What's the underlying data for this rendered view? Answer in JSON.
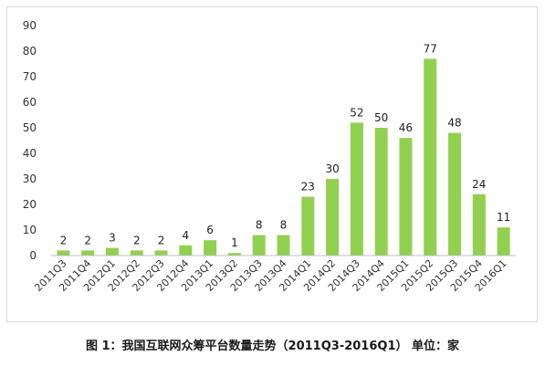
{
  "caption": "图 1：我国互联网众筹平台数量走势（2011Q3-2016Q1） 单位：家",
  "chart_data": {
    "type": "bar",
    "categories": [
      "2011Q3",
      "2011Q4",
      "2012Q1",
      "2012Q2",
      "2012Q3",
      "2012Q4",
      "2013Q1",
      "2013Q2",
      "2013Q3",
      "2013Q4",
      "2014Q1",
      "2014Q2",
      "2014Q3",
      "2014Q4",
      "2015Q1",
      "2015Q2",
      "2015Q3",
      "2015Q4",
      "2016Q1"
    ],
    "values": [
      2,
      2,
      3,
      2,
      2,
      4,
      6,
      1,
      8,
      8,
      23,
      30,
      52,
      50,
      46,
      77,
      48,
      24,
      11
    ],
    "data_labels": [
      "2",
      "2",
      "3",
      "2",
      "2",
      "4",
      "6",
      "1",
      "8",
      "8",
      "23",
      "30",
      "52",
      "50",
      "46",
      "77",
      "48",
      "24",
      "11"
    ],
    "yticks": [
      "0",
      "10",
      "20",
      "30",
      "40",
      "50",
      "60",
      "70",
      "80",
      "90"
    ],
    "ylim": [
      0,
      90
    ],
    "grid": false,
    "bar_color": "#92d050",
    "title": "",
    "xlabel": "",
    "ylabel": ""
  }
}
